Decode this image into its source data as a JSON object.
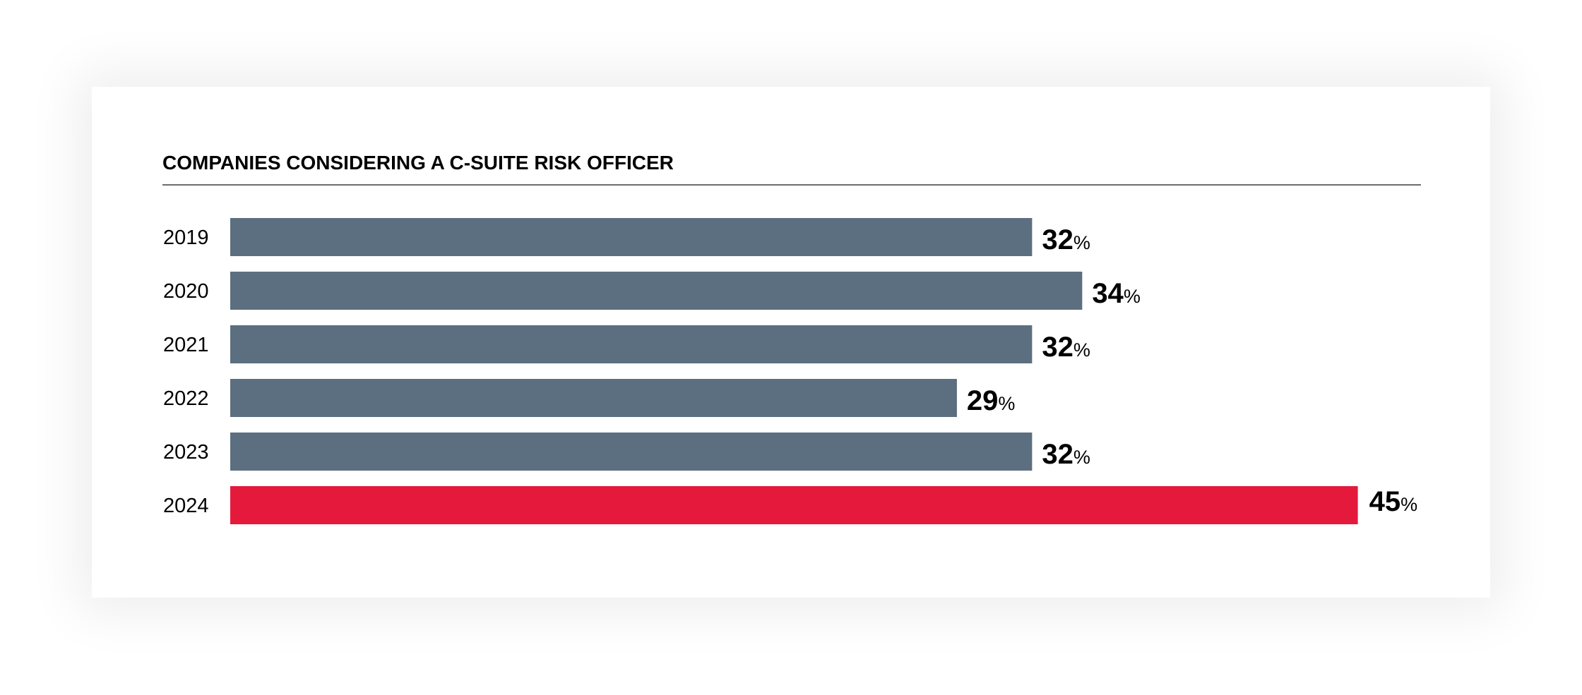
{
  "chart_data": {
    "type": "bar",
    "orientation": "horizontal",
    "title": "COMPANIES CONSIDERING A C-SUITE RISK OFFICER",
    "categories": [
      "2019",
      "2020",
      "2021",
      "2022",
      "2023",
      "2024"
    ],
    "values": [
      32,
      34,
      32,
      29,
      32,
      45
    ],
    "value_unit": "%",
    "colors": {
      "default": "#5c6f80",
      "highlight": "#e5193b"
    },
    "highlight_category": "2024",
    "xlim": [
      0,
      45
    ],
    "grid": false,
    "legend": "none"
  }
}
